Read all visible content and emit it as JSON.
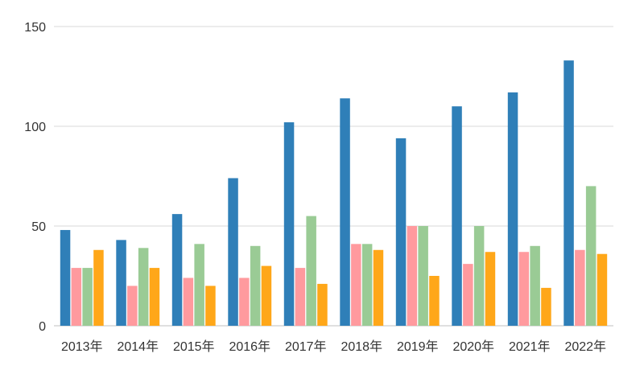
{
  "chart_data": {
    "type": "bar",
    "categories": [
      "2013年",
      "2014年",
      "2015年",
      "2016年",
      "2017年",
      "2018年",
      "2019年",
      "2020年",
      "2021年",
      "2022年"
    ],
    "series": [
      {
        "color": "#2f7fb8",
        "values": [
          48,
          43,
          56,
          74,
          102,
          114,
          94,
          110,
          117,
          133
        ]
      },
      {
        "color": "#ff9a9e",
        "values": [
          29,
          20,
          24,
          24,
          29,
          41,
          50,
          31,
          37,
          38
        ]
      },
      {
        "color": "#9acb95",
        "values": [
          29,
          39,
          41,
          40,
          55,
          41,
          50,
          50,
          40,
          70
        ]
      },
      {
        "color": "#ffa719",
        "values": [
          38,
          29,
          20,
          30,
          21,
          38,
          25,
          37,
          19,
          36
        ]
      }
    ],
    "ylim": [
      0,
      150
    ],
    "yticks": [
      0,
      50,
      100,
      150
    ],
    "grid": true,
    "legend": "none"
  }
}
